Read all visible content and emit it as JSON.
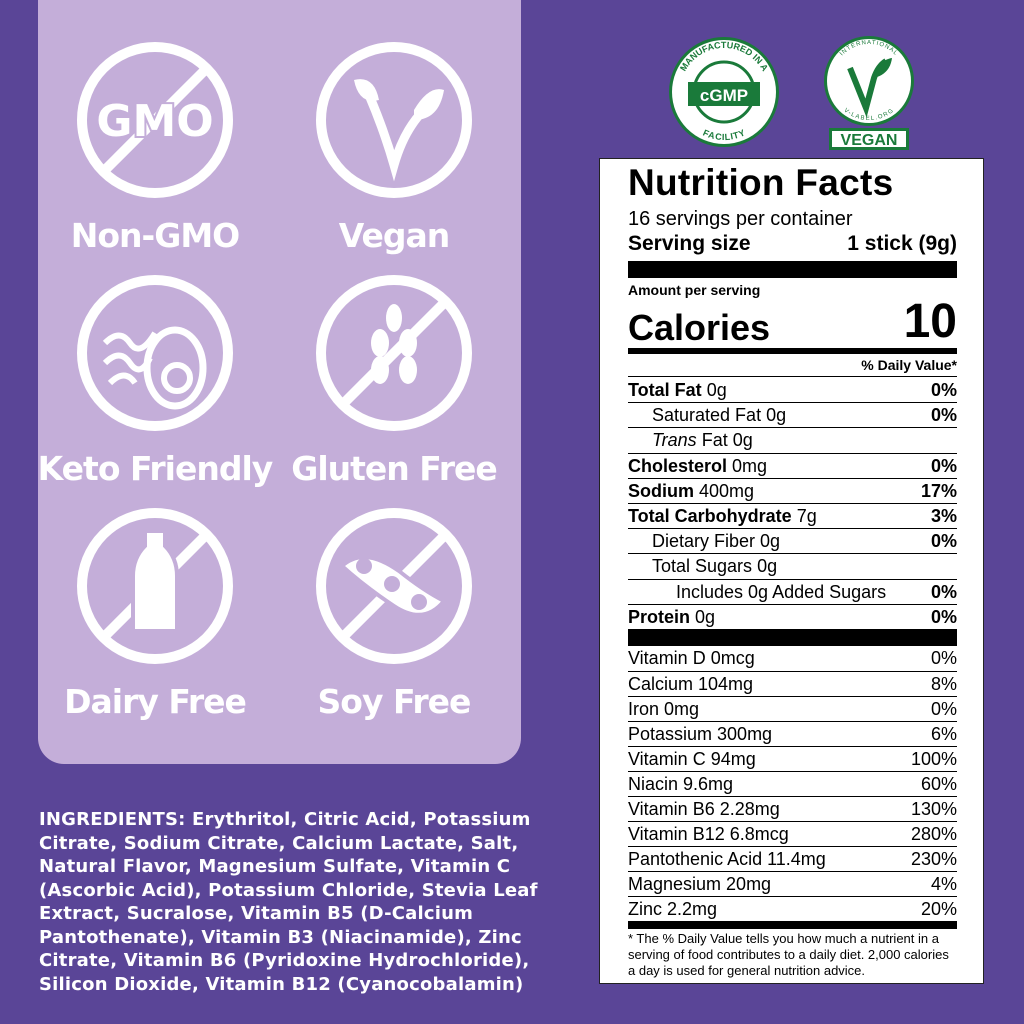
{
  "badges": [
    {
      "label": "Non-GMO",
      "icon": "no-gmo-icon",
      "glyph": "GMO"
    },
    {
      "label": "Vegan",
      "icon": "vegan-leaf-icon"
    },
    {
      "label": "Keto Friendly",
      "icon": "avocado-icon"
    },
    {
      "label": "Gluten Free",
      "icon": "no-wheat-icon"
    },
    {
      "label": "Dairy Free",
      "icon": "no-milk-icon"
    },
    {
      "label": "Soy Free",
      "icon": "no-soy-icon"
    }
  ],
  "ingredients": {
    "heading": "INGREDIENTS:",
    "text": "Erythritol, Citric Acid, Potassium Citrate, Sodium Citrate, Calcium Lactate, Salt, Natural Flavor, Magnesium Sulfate, Vitamin C (Ascorbic Acid), Potassium Chloride, Stevia Leaf Extract, Sucralose, Vitamin B5 (D-Calcium Pantothenate), Vitamin B3 (Niacinamide), Zinc Citrate, Vitamin B6 (Pyridoxine Hydrochloride), Silicon Dioxide, Vitamin B12 (Cyanocobalamin)"
  },
  "seals": {
    "cgmp": {
      "center": "cGMP",
      "ring_top": "MANUFACTURED IN A",
      "ring_bottom": "FACILITY"
    },
    "vegan": {
      "ring_top": "INTERNATIONAL",
      "ring_bottom": "V-LABEL.ORG",
      "label": "VEGAN"
    }
  },
  "colors": {
    "background": "#5a4597",
    "panel": "#c4aed9",
    "seal_green": "#1a7a3a"
  },
  "nutrition": {
    "title": "Nutrition Facts",
    "servings": "16 servings per container",
    "serving_size_label": "Serving size",
    "serving_size_value": "1 stick (9g)",
    "amount_per_serving": "Amount per serving",
    "calories_label": "Calories",
    "calories_value": "10",
    "dv_header": "% Daily Value*",
    "nutrients": [
      {
        "name": "Total Fat",
        "amount": "0g",
        "dv": "0%",
        "bold": true,
        "indent": 0
      },
      {
        "name": "Saturated Fat",
        "amount": "0g",
        "dv": "0%",
        "bold": false,
        "indent": 1
      },
      {
        "name": "Trans",
        "suffix": "Fat",
        "amount": "0g",
        "dv": "",
        "bold": false,
        "indent": 1
      },
      {
        "name": "Cholesterol",
        "amount": "0mg",
        "dv": "0%",
        "bold": true,
        "indent": 0
      },
      {
        "name": "Sodium",
        "amount": "400mg",
        "dv": "17%",
        "bold": true,
        "indent": 0
      },
      {
        "name": "Total Carbohydrate",
        "amount": "7g",
        "dv": "3%",
        "bold": true,
        "indent": 0
      },
      {
        "name": "Dietary Fiber",
        "amount": "0g",
        "dv": "0%",
        "bold": false,
        "indent": 1
      },
      {
        "name": "Total Sugars",
        "amount": "0g",
        "dv": "",
        "bold": false,
        "indent": 1
      },
      {
        "name": "Includes 0g Added Sugars",
        "amount": "",
        "dv": "0%",
        "bold": false,
        "indent": 2
      },
      {
        "name": "Protein",
        "amount": "0g",
        "dv": "0%",
        "bold": true,
        "indent": 0
      }
    ],
    "vitamins": [
      {
        "name": "Vitamin D 0mcg",
        "dv": "0%"
      },
      {
        "name": "Calcium 104mg",
        "dv": "8%"
      },
      {
        "name": "Iron 0mg",
        "dv": "0%"
      },
      {
        "name": "Potassium 300mg",
        "dv": "6%"
      },
      {
        "name": "Vitamin C 94mg",
        "dv": "100%"
      },
      {
        "name": "Niacin 9.6mg",
        "dv": "60%"
      },
      {
        "name": "Vitamin B6 2.28mg",
        "dv": "130%"
      },
      {
        "name": "Vitamin B12 6.8mcg",
        "dv": "280%"
      },
      {
        "name": "Pantothenic Acid 11.4mg",
        "dv": "230%"
      },
      {
        "name": "Magnesium 20mg",
        "dv": "4%"
      },
      {
        "name": "Zinc 2.2mg",
        "dv": "20%"
      }
    ],
    "footnote": "* The % Daily Value tells you how much a nutrient in a serving of food contributes to a daily diet. 2,000 calories a day is used for general nutrition advice."
  }
}
